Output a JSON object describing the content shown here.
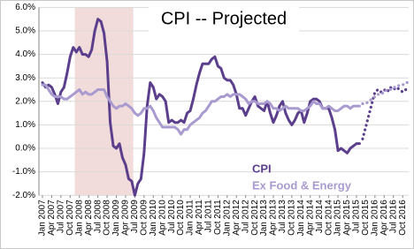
{
  "chart_data": {
    "type": "line",
    "title": "CPI -- Projected",
    "categories": [
      "Jan 2007",
      null,
      null,
      "Apr 2007",
      null,
      null,
      "Jul 2007",
      null,
      null,
      "Oct 2007",
      null,
      null,
      "Jan 2008",
      null,
      null,
      "Apr 2008",
      null,
      null,
      "Jul 2008",
      null,
      null,
      "Oct 2008",
      null,
      null,
      "Jan 2009",
      null,
      null,
      "Apr 2009",
      null,
      null,
      "Jul 2009",
      null,
      null,
      "Oct 2009",
      null,
      null,
      "Jan 2010",
      null,
      null,
      "Apr 2010",
      null,
      null,
      "Jul 2010",
      null,
      null,
      "Oct 2010",
      null,
      null,
      "Jan 2011",
      null,
      null,
      "Apr 2011",
      null,
      null,
      "Jul 2011",
      null,
      null,
      "Oct 2011",
      null,
      null,
      "Jan 2012",
      null,
      null,
      "Apr 2012",
      null,
      null,
      "Jul 2012",
      null,
      null,
      "Oct 2012",
      null,
      null,
      "Jan 2013",
      null,
      null,
      "Apr 2013",
      null,
      null,
      "Jul 2013",
      null,
      null,
      "Oct 2013",
      null,
      null,
      "Jan 2014",
      null,
      null,
      "Apr 2014",
      null,
      null,
      "Jul 2014",
      null,
      null,
      "Oct 2014",
      null,
      null,
      "Jan 2015",
      null,
      null,
      "Apr 2015",
      null,
      null,
      "Jul 2015",
      null,
      null,
      "Oct 2015",
      null,
      null,
      "Jan 2016",
      null,
      null,
      "Apr 2016",
      null,
      null,
      "Jul 2016",
      null,
      null,
      "Oct 2016",
      null,
      null
    ],
    "series": [
      {
        "name": "CPI",
        "color": "#5b3f8c",
        "style": "solid",
        "values": [
          2.8,
          2.6,
          2.7,
          2.6,
          2.3,
          1.9,
          2.4,
          2.6,
          3.2,
          3.9,
          4.3,
          4.1,
          4.3,
          4.0,
          4.0,
          3.9,
          4.2,
          5.0,
          5.5,
          5.4,
          4.9,
          3.7,
          1.1,
          0.1,
          0.0,
          0.2,
          -0.4,
          -0.7,
          -1.3,
          -1.4,
          -2.0,
          -1.5,
          -1.3,
          -0.2,
          1.8,
          2.8,
          2.6,
          2.1,
          2.3,
          2.2,
          2.0,
          1.1,
          1.2,
          1.1,
          1.1,
          1.2,
          1.1,
          1.5,
          1.6,
          2.1,
          2.7,
          3.2,
          3.6,
          3.6,
          3.6,
          3.8,
          3.9,
          3.5,
          3.4,
          3.0,
          2.9,
          2.9,
          2.7,
          2.3,
          1.7,
          1.7,
          1.4,
          1.7,
          2.0,
          2.2,
          1.8,
          1.7,
          1.6,
          2.0,
          1.5,
          1.1,
          1.4,
          1.8,
          2.0,
          1.5,
          1.2,
          1.0,
          1.2,
          1.5,
          1.6,
          1.1,
          1.5,
          2.0,
          2.1,
          2.1,
          2.0,
          1.7,
          1.7,
          1.7,
          1.3,
          0.8,
          -0.1,
          0.0,
          -0.1,
          -0.2,
          0.0,
          0.1,
          0.2,
          0.2,
          null,
          null,
          null,
          null,
          null,
          null,
          null,
          null,
          null,
          null,
          null,
          null,
          null,
          null,
          null,
          null
        ]
      },
      {
        "name": "Ex Food & Energy",
        "color": "#a99bcf",
        "style": "solid",
        "values": [
          2.7,
          2.7,
          2.5,
          2.3,
          2.2,
          2.2,
          2.2,
          2.1,
          2.1,
          2.2,
          2.3,
          2.4,
          2.5,
          2.3,
          2.4,
          2.3,
          2.3,
          2.4,
          2.5,
          2.5,
          2.5,
          2.2,
          2.0,
          1.8,
          1.7,
          1.8,
          1.8,
          1.9,
          1.8,
          1.7,
          1.5,
          1.4,
          1.5,
          1.7,
          1.7,
          1.8,
          1.6,
          1.3,
          1.1,
          0.9,
          0.9,
          0.9,
          0.9,
          0.9,
          0.8,
          0.6,
          0.8,
          0.8,
          1.0,
          1.1,
          1.2,
          1.3,
          1.5,
          1.6,
          1.8,
          2.0,
          2.0,
          2.1,
          2.2,
          2.2,
          2.3,
          2.2,
          2.3,
          2.3,
          2.3,
          2.2,
          2.1,
          1.9,
          2.0,
          2.0,
          1.9,
          1.9,
          1.9,
          2.0,
          1.9,
          1.7,
          1.7,
          1.6,
          1.7,
          1.8,
          1.7,
          1.7,
          1.7,
          1.7,
          1.6,
          1.6,
          1.7,
          1.8,
          2.0,
          1.9,
          1.9,
          1.7,
          1.7,
          1.8,
          1.7,
          1.6,
          1.6,
          1.7,
          1.8,
          1.8,
          1.7,
          1.8,
          1.8,
          1.8,
          null,
          null,
          null,
          null,
          null,
          null,
          null,
          null,
          null,
          null,
          null,
          null,
          null,
          null,
          null,
          null
        ]
      },
      {
        "color": "#5b3f8c",
        "style": "dotted",
        "values": [
          null,
          null,
          null,
          null,
          null,
          null,
          null,
          null,
          null,
          null,
          null,
          null,
          null,
          null,
          null,
          null,
          null,
          null,
          null,
          null,
          null,
          null,
          null,
          null,
          null,
          null,
          null,
          null,
          null,
          null,
          null,
          null,
          null,
          null,
          null,
          null,
          null,
          null,
          null,
          null,
          null,
          null,
          null,
          null,
          null,
          null,
          null,
          null,
          null,
          null,
          null,
          null,
          null,
          null,
          null,
          null,
          null,
          null,
          null,
          null,
          null,
          null,
          null,
          null,
          null,
          null,
          null,
          null,
          null,
          null,
          null,
          null,
          null,
          null,
          null,
          null,
          null,
          null,
          null,
          null,
          null,
          null,
          null,
          null,
          null,
          null,
          null,
          null,
          null,
          null,
          null,
          null,
          null,
          null,
          null,
          null,
          null,
          null,
          null,
          null,
          null,
          null,
          null,
          null,
          0.4,
          0.9,
          1.4,
          1.9,
          2.4,
          2.5,
          2.4,
          2.5,
          2.4,
          2.6,
          2.5,
          2.6,
          2.5,
          2.4,
          2.5,
          2.5
        ]
      },
      {
        "color": "#a99bcf",
        "style": "dotted",
        "values": [
          null,
          null,
          null,
          null,
          null,
          null,
          null,
          null,
          null,
          null,
          null,
          null,
          null,
          null,
          null,
          null,
          null,
          null,
          null,
          null,
          null,
          null,
          null,
          null,
          null,
          null,
          null,
          null,
          null,
          null,
          null,
          null,
          null,
          null,
          null,
          null,
          null,
          null,
          null,
          null,
          null,
          null,
          null,
          null,
          null,
          null,
          null,
          null,
          null,
          null,
          null,
          null,
          null,
          null,
          null,
          null,
          null,
          null,
          null,
          null,
          null,
          null,
          null,
          null,
          null,
          null,
          null,
          null,
          null,
          null,
          null,
          null,
          null,
          null,
          null,
          null,
          null,
          null,
          null,
          null,
          null,
          null,
          null,
          null,
          null,
          null,
          null,
          null,
          null,
          null,
          null,
          null,
          null,
          null,
          null,
          null,
          null,
          null,
          null,
          null,
          null,
          null,
          null,
          null,
          1.9,
          1.9,
          2.0,
          2.1,
          2.2,
          2.3,
          2.3,
          2.4,
          2.5,
          2.5,
          2.6,
          2.6,
          2.7,
          2.7,
          2.8,
          2.8
        ]
      }
    ],
    "shade": {
      "from": 11,
      "to": 29,
      "color": "#f2dcdb"
    },
    "ylim": [
      -2,
      6
    ],
    "yticks": [
      {
        "value": -2,
        "label": "-2.0%"
      },
      {
        "value": -1,
        "label": "-1.0%"
      },
      {
        "value": 0,
        "label": "0.0%"
      },
      {
        "value": 1,
        "label": "1.0%"
      },
      {
        "value": 2,
        "label": "2.0%"
      },
      {
        "value": 3,
        "label": "3.0%"
      },
      {
        "value": 4,
        "label": "4.0%"
      },
      {
        "value": 5,
        "label": "5.0%"
      },
      {
        "value": 6,
        "label": "6.0%"
      }
    ],
    "grid": true
  }
}
